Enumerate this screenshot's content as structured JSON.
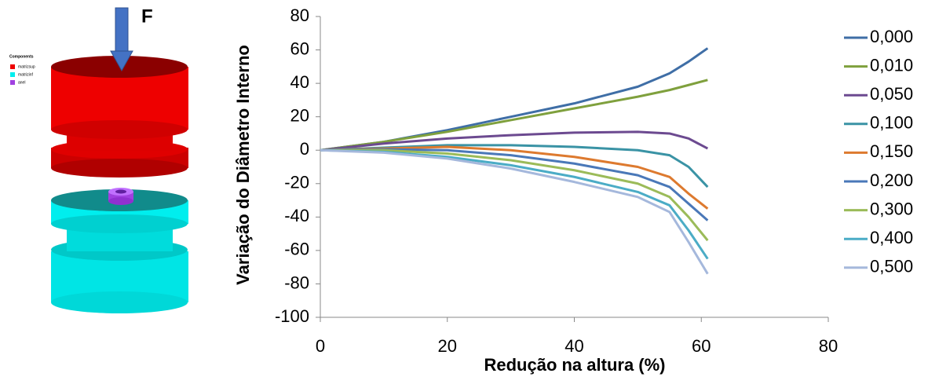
{
  "illustration": {
    "force_label": "F",
    "legend_title": "Components",
    "legend": [
      "matrizsup",
      "matrizinf",
      "anel"
    ]
  },
  "chart_data": {
    "type": "line",
    "x_label": "Redução na altura (%)",
    "y_label": "Variação do Diâmetro Interno",
    "x": [
      0,
      10,
      20,
      30,
      40,
      50,
      55,
      58,
      61
    ],
    "series": [
      {
        "name": "0,000",
        "color": "#3f6ea6",
        "values": [
          0,
          5,
          12,
          20,
          28,
          38,
          46,
          53,
          61
        ]
      },
      {
        "name": "0,010",
        "color": "#7fa03d",
        "values": [
          0,
          5,
          11,
          18,
          25,
          32,
          36,
          39,
          42
        ]
      },
      {
        "name": "0,050",
        "color": "#6c4a90",
        "values": [
          0,
          4,
          7,
          9,
          10.5,
          11,
          10,
          7,
          1
        ]
      },
      {
        "name": "0,100",
        "color": "#3a93a5",
        "values": [
          0,
          1.5,
          3,
          3,
          2,
          0,
          -3,
          -10,
          -22
        ]
      },
      {
        "name": "0,150",
        "color": "#dd7a2f",
        "values": [
          0,
          1,
          2,
          0,
          -4,
          -10,
          -16,
          -26,
          -35
        ]
      },
      {
        "name": "0,200",
        "color": "#4a78b8",
        "values": [
          0,
          0.5,
          0,
          -3,
          -8,
          -15,
          -22,
          -32,
          -42
        ]
      },
      {
        "name": "0,300",
        "color": "#9bbb59",
        "values": [
          0,
          0,
          -2,
          -6,
          -12,
          -20,
          -28,
          -40,
          -54
        ]
      },
      {
        "name": "0,400",
        "color": "#4bacc6",
        "values": [
          0,
          -1,
          -4,
          -9,
          -16,
          -25,
          -33,
          -48,
          -65
        ]
      },
      {
        "name": "0,500",
        "color": "#a5b8dc",
        "values": [
          0,
          -1.5,
          -5,
          -11,
          -19,
          -28,
          -37,
          -55,
          -74
        ]
      }
    ],
    "xlim": [
      0,
      80
    ],
    "xticks": [
      0,
      20,
      40,
      60,
      80
    ],
    "ylim": [
      -100,
      80
    ],
    "yticks": [
      -100,
      -80,
      -60,
      -40,
      -20,
      0,
      20,
      40,
      60,
      80
    ],
    "grid": false,
    "legend": "right"
  }
}
